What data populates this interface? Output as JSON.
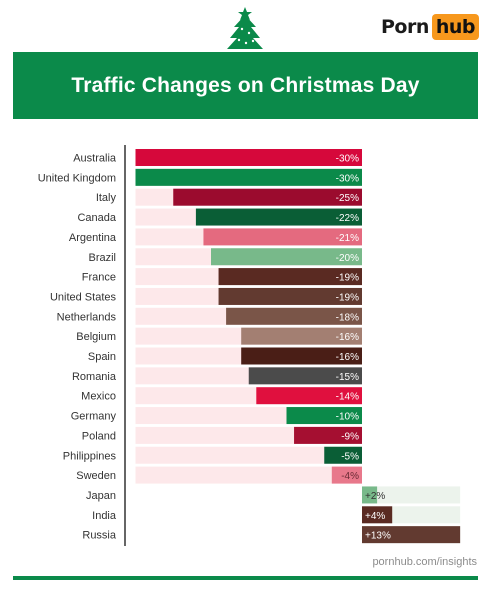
{
  "logo": {
    "left": "Porn",
    "right": "hub"
  },
  "title": "Traffic Changes on Christmas Day",
  "source": "pornhub.com/insights",
  "colors": {
    "green": "#0b8a4a",
    "orange": "#f7981d",
    "neg_track": "#fde8ea",
    "pos_track": "#ecf3ec"
  },
  "chart_data": {
    "type": "bar",
    "orientation": "horizontal",
    "title": "Traffic Changes on Christmas Day",
    "unit": "%",
    "xlim": [
      -30,
      13
    ],
    "categories": [
      "Australia",
      "United Kingdom",
      "Italy",
      "Canada",
      "Argentina",
      "Brazil",
      "France",
      "United States",
      "Netherlands",
      "Belgium",
      "Spain",
      "Romania",
      "Mexico",
      "Germany",
      "Poland",
      "Philippines",
      "Sweden",
      "Japan",
      "India",
      "Russia"
    ],
    "values": [
      -30,
      -30,
      -25,
      -22,
      -21,
      -20,
      -19,
      -19,
      -18,
      -16,
      -16,
      -15,
      -14,
      -10,
      -9,
      -5,
      -4,
      2,
      4,
      13
    ],
    "labels": [
      "-30%",
      "-30%",
      "-25%",
      "-22%",
      "-21%",
      "-20%",
      "-19%",
      "-19%",
      "-18%",
      "-16%",
      "-16%",
      "-15%",
      "-14%",
      "-10%",
      "-9%",
      "-5%",
      "-4%",
      "+2%",
      "+4%",
      "+13%"
    ],
    "bar_colors": [
      "#d6083b",
      "#0b8a4a",
      "#9b0b2e",
      "#0a5e36",
      "#e46a7f",
      "#78b98a",
      "#5a2a22",
      "#623a30",
      "#7a5548",
      "#a37f72",
      "#4a1e16",
      "#4b4b4b",
      "#e0103e",
      "#0b8a4a",
      "#a50f31",
      "#0a5e36",
      "#e8788b",
      "#78b98a",
      "#5a2a22",
      "#623a30"
    ]
  }
}
